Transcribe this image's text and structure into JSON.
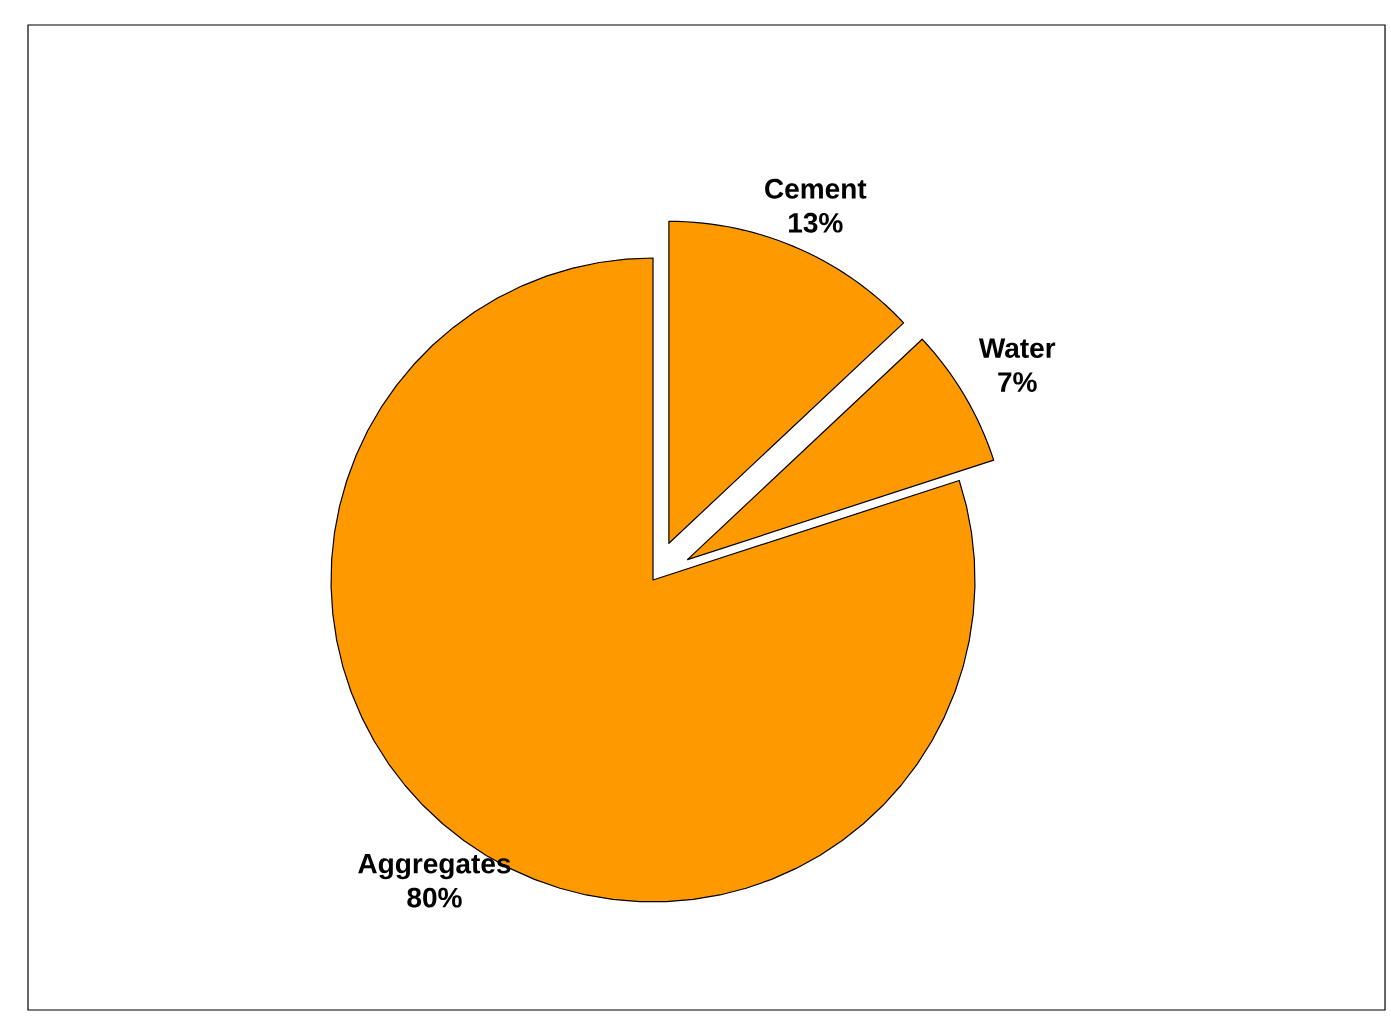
{
  "chart_data": {
    "type": "pie",
    "categories": [
      "Cement",
      "Water",
      "Aggregates"
    ],
    "values": [
      13,
      7,
      80
    ],
    "colors": [
      "#ff9900",
      "#ff9900",
      "#ff9900"
    ],
    "value_labels": [
      "13%",
      "7%",
      "80%"
    ]
  }
}
